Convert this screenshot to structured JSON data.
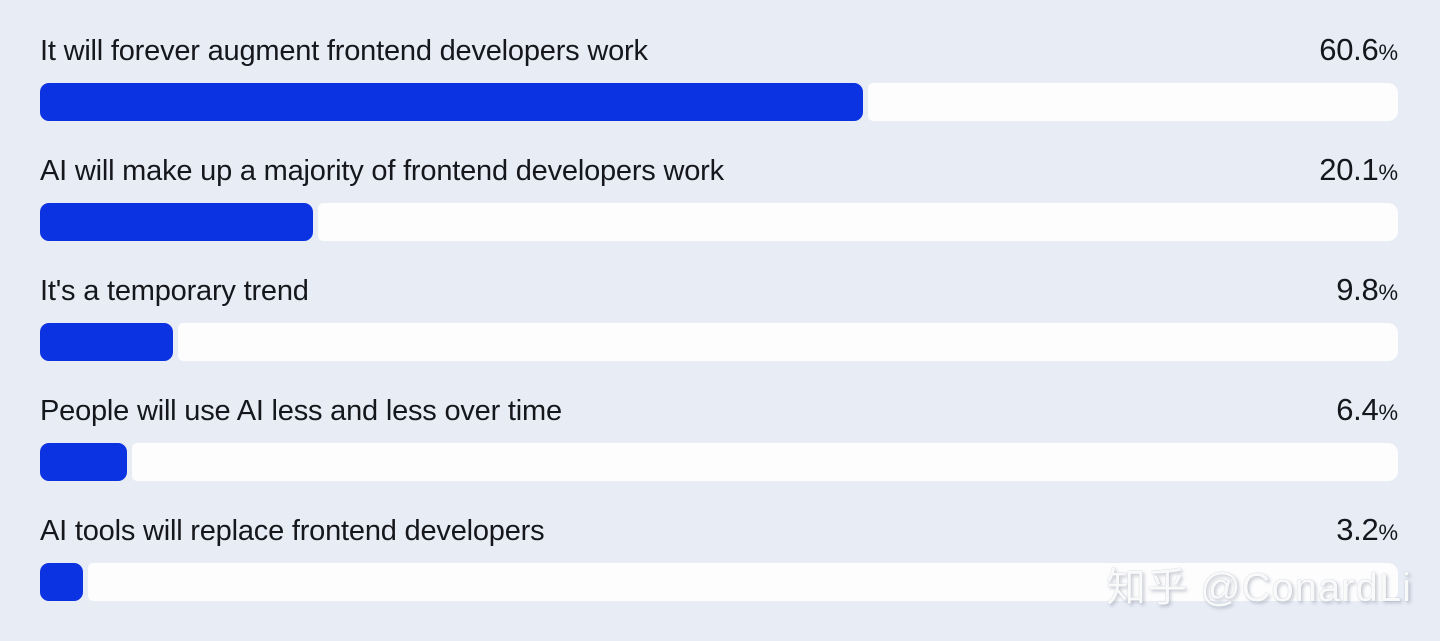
{
  "chart_data": {
    "type": "bar",
    "orientation": "horizontal",
    "title": "",
    "xlabel": "",
    "ylabel": "",
    "xlim": [
      0,
      100
    ],
    "grid": false,
    "legend": "none",
    "unit": "%",
    "categories": [
      "It will forever augment frontend developers work",
      "AI will make up a majority of frontend developers work",
      "It's a temporary trend",
      "People will use AI less and less over time",
      "AI tools will replace frontend developers"
    ],
    "values": [
      60.6,
      20.1,
      9.8,
      6.4,
      3.2
    ]
  },
  "rows": [
    {
      "label": "It will forever augment frontend developers work",
      "value": 60.6,
      "value_label": "60.6",
      "unit": "%"
    },
    {
      "label": "AI will make up a majority of frontend developers work",
      "value": 20.1,
      "value_label": "20.1",
      "unit": "%"
    },
    {
      "label": "It's a temporary trend",
      "value": 9.8,
      "value_label": "9.8",
      "unit": "%"
    },
    {
      "label": "People will use AI less and less over time",
      "value": 6.4,
      "value_label": "6.4",
      "unit": "%"
    },
    {
      "label": "AI tools will replace frontend developers",
      "value": 3.2,
      "value_label": "3.2",
      "unit": "%"
    }
  ],
  "watermark": {
    "text": "知乎 @ConardLi"
  },
  "colors": {
    "background": "#e7ecf5",
    "bar_fill": "#0b33e1",
    "bar_track": "#fdfdfe",
    "text": "#15171c",
    "watermark": "#ffffff"
  }
}
